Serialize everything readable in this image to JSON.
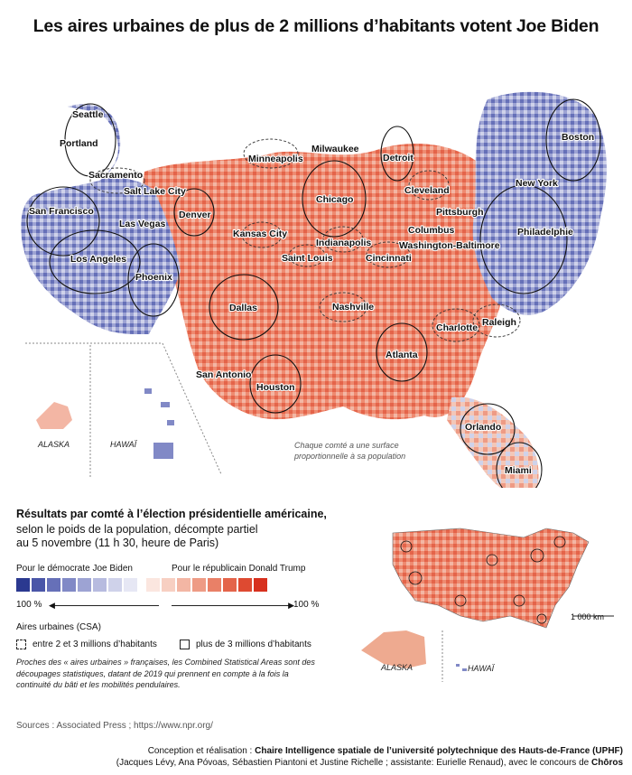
{
  "title": "Les aires urbaines de plus de 2 millions d’habitants votent Joe Biden",
  "map": {
    "cities": [
      "Seattle",
      "Portland",
      "Sacramento",
      "San Francisco",
      "Salt Lake City",
      "Denver",
      "Las Vegas",
      "Los Angeles",
      "Phoenix",
      "Minneapolis",
      "Milwaukee",
      "Detroit",
      "Chicago",
      "Cleveland",
      "Boston",
      "New York",
      "Pittsburgh",
      "Columbus",
      "Kansas City",
      "Indianapolis",
      "Washington-Baltimore",
      "Philadelphie",
      "Saint Louis",
      "Cincinnati",
      "Dallas",
      "Nashville",
      "Charlotte",
      "Raleigh",
      "Atlanta",
      "San Antonio",
      "Houston",
      "Orlando",
      "Miami"
    ],
    "alaska": "ALASKA",
    "hawaii": "HAWAÏ",
    "note_line1": "Chaque comté a une surface",
    "note_line2": "proportionnelle à sa population",
    "inset_alaska": "ALASKA",
    "inset_hawaii": "HAWAÏ",
    "scale": "1 000 km"
  },
  "legend": {
    "title": "Résultats par comté à l’élection présidentielle américaine,",
    "sub1": "selon le poids de la population, décompte partiel",
    "sub2": "au 5 novembre (11 h 30, heure de Paris)",
    "dem_label": "Pour le démocrate Joe Biden",
    "rep_label": "Pour le républicain Donald Trump",
    "dem_pct": "100 %",
    "rep_pct": "100 %",
    "dem_colors": [
      "#2b3990",
      "#4a56a8",
      "#6670b8",
      "#8189c6",
      "#9da3d3",
      "#b7bbdf",
      "#cfd2ea",
      "#e6e7f4"
    ],
    "rep_colors": [
      "#fbe6df",
      "#f7cfc2",
      "#f3b6a4",
      "#ee9b85",
      "#e98067",
      "#e4644a",
      "#de4a31",
      "#d7301e"
    ],
    "csa_title": "Aires urbaines (CSA)",
    "csa_small": "entre 2 et 3 millions d’habitants",
    "csa_large": "plus de 3 millions d’habitants",
    "definition": "Proches des « aires urbaines » françaises, les Combined Statistical Areas sont des découpages statistiques, datant de 2019 qui prennent en compte à la fois la continuité du bâti et les mobilités pendulaires."
  },
  "sources": "Sources : Associated Press ; https://www.npr.org/",
  "credits_prefix": "Conception et réalisation : ",
  "credits_bold": "Chaire Intelligence spatiale de l’université polytechnique des Hauts-de-France (UPHF)",
  "credits_line2": "(Jacques Lévy, Ana Póvoas, Sébastien Piantoni et Justine Richelle ; assistante: Eurielle Renaud), avec le concours de ",
  "credits_bold2": "Chōros"
}
